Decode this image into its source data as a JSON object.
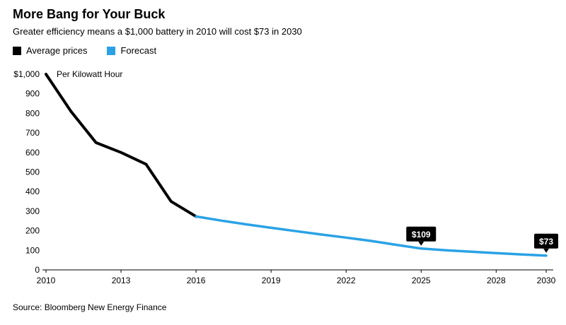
{
  "header": {
    "title": "More Bang for Your Buck",
    "subtitle": "Greater efficiency means a $1,000 battery in 2010 will cost $73 in 2030"
  },
  "legend": {
    "items": [
      {
        "label": "Average prices",
        "color": "#000000"
      },
      {
        "label": "Forecast",
        "color": "#2aa2e5"
      }
    ]
  },
  "chart_data": {
    "type": "line",
    "title": "More Bang for Your Buck",
    "subtitle": "Greater efficiency means a $1,000 battery in 2010 will cost $73 in 2030",
    "annotation": "Per Kilowatt Hour",
    "grid": false,
    "legend_position": "top-left",
    "xlim": [
      2010,
      2030
    ],
    "ylim": [
      0,
      1000
    ],
    "xticks": [
      2010,
      2013,
      2016,
      2019,
      2022,
      2025,
      2028,
      2030
    ],
    "yticks": [
      0,
      100,
      200,
      300,
      400,
      500,
      600,
      700,
      800,
      900,
      1000
    ],
    "ytick_labels": [
      "0",
      "100",
      "200",
      "300",
      "400",
      "500",
      "600",
      "700",
      "800",
      "900",
      "$1,000"
    ],
    "series": [
      {
        "name": "Average prices",
        "color": "#000000",
        "width": 4,
        "x": [
          2010,
          2011,
          2012,
          2013,
          2014,
          2015,
          2016
        ],
        "values": [
          1000,
          810,
          650,
          600,
          540,
          350,
          273
        ]
      },
      {
        "name": "Forecast",
        "color": "#2aa2e5",
        "width": 3.5,
        "x": [
          2016,
          2017,
          2018,
          2019,
          2020,
          2021,
          2022,
          2023,
          2024,
          2025,
          2026,
          2027,
          2028,
          2029,
          2030
        ],
        "values": [
          273,
          252,
          233,
          215,
          198,
          181,
          165,
          148,
          128,
          109,
          100,
          93,
          86,
          79,
          73
        ]
      }
    ],
    "callouts": [
      {
        "x": 2025,
        "y": 109,
        "label": "$109"
      },
      {
        "x": 2030,
        "y": 73,
        "label": "$73"
      }
    ]
  },
  "source": "Source: Bloomberg New Energy Finance"
}
